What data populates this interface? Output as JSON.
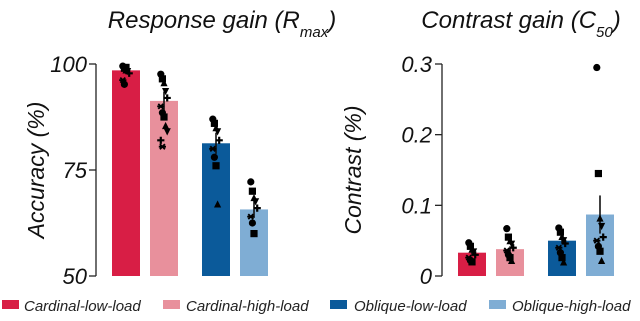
{
  "legend": [
    {
      "label": "Cardinal-low-load",
      "color": "#d81e45"
    },
    {
      "label": "Cardinal-high-load",
      "color": "#e8909c"
    },
    {
      "label": "Oblique-low-load",
      "color": "#0b5a9a"
    },
    {
      "label": "Oblique-high-load",
      "color": "#7fadd4"
    }
  ],
  "chart_data": [
    {
      "type": "bar",
      "title": "Response gain (R",
      "title_sub": "max",
      "title_end": ")",
      "ylabel": "Accuracy (%)",
      "xlabel": "",
      "ylim": [
        50,
        100
      ],
      "yticks": [
        50,
        75,
        100
      ],
      "categories": [
        "Cardinal-low-load",
        "Cardinal-high-load",
        "Oblique-low-load",
        "Oblique-high-load"
      ],
      "colors": [
        "#d81e45",
        "#e8909c",
        "#0b5a9a",
        "#7fadd4"
      ],
      "values": [
        98.5,
        91.3,
        81.3,
        65.7
      ],
      "errors": [
        0.9,
        2.2,
        2.5,
        2.0
      ],
      "points": [
        [
          99.5,
          99.0,
          98.6,
          98.2,
          97.8,
          96.2,
          95.2,
          99.2
        ],
        [
          97.6,
          96.5,
          95.6,
          93.5,
          92.0,
          90.0,
          88.5,
          87.5,
          85.5,
          84.0,
          82.0,
          80.5
        ],
        [
          87.0,
          86.0,
          85.0,
          84.0,
          82.0,
          80.0,
          78.0,
          76.0,
          67.0
        ],
        [
          72.2,
          70.0,
          68.5,
          67.5,
          66.0,
          64.0,
          62.5,
          60.0
        ]
      ]
    },
    {
      "type": "bar",
      "title": "Contrast gain (C",
      "title_sub": "50",
      "title_end": ")",
      "ylabel": "Contrast (%)",
      "xlabel": "",
      "ylim": [
        0,
        0.3
      ],
      "yticks": [
        0,
        0.1,
        0.2,
        0.3
      ],
      "categories": [
        "Cardinal-low-load",
        "Cardinal-high-load",
        "Oblique-low-load",
        "Oblique-high-load"
      ],
      "colors": [
        "#d81e45",
        "#e8909c",
        "#0b5a9a",
        "#7fadd4"
      ],
      "values": [
        0.033,
        0.038,
        0.05,
        0.087
      ],
      "errors": [
        0.003,
        0.004,
        0.004,
        0.027
      ],
      "points": [
        [
          0.047,
          0.042,
          0.038,
          0.034,
          0.03,
          0.026,
          0.022,
          0.02
        ],
        [
          0.067,
          0.055,
          0.05,
          0.045,
          0.04,
          0.036,
          0.03,
          0.026,
          0.022
        ],
        [
          0.068,
          0.062,
          0.056,
          0.05,
          0.046,
          0.04,
          0.033,
          0.026,
          0.02
        ],
        [
          0.295,
          0.145,
          0.082,
          0.07,
          0.055,
          0.05,
          0.042,
          0.035,
          0.022
        ]
      ]
    }
  ]
}
